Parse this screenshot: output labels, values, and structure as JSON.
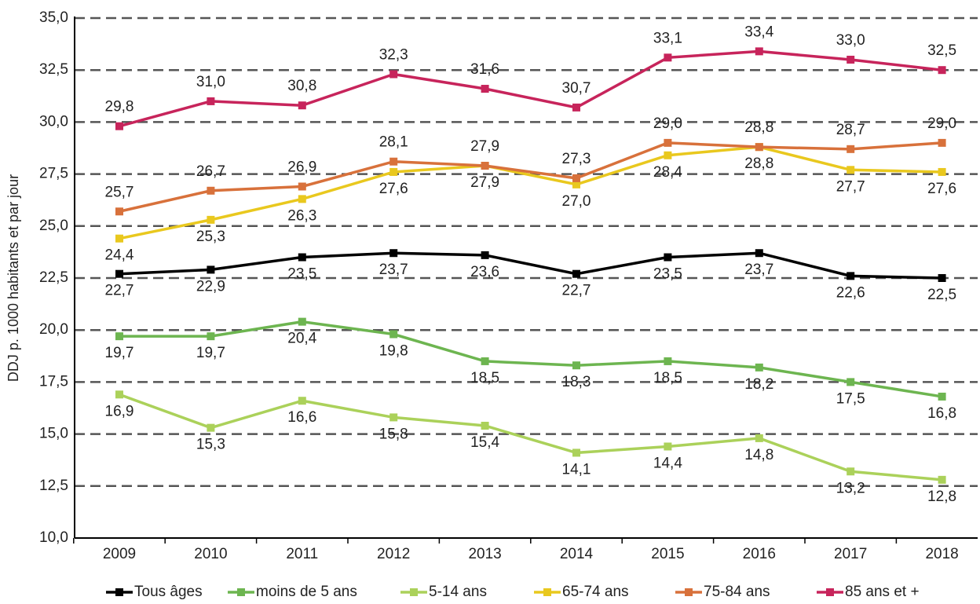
{
  "chart_data": {
    "type": "line",
    "y_label": "DDJ p. 1000 habitants et par jour",
    "categories": [
      "2009",
      "2010",
      "2011",
      "2012",
      "2013",
      "2014",
      "2015",
      "2016",
      "2017",
      "2018"
    ],
    "ylim": [
      10,
      35
    ],
    "yticks": [
      {
        "value": 10,
        "label": "10,0"
      },
      {
        "value": 12.5,
        "label": "12,5"
      },
      {
        "value": 15,
        "label": "15,0"
      },
      {
        "value": 17.5,
        "label": "17,5"
      },
      {
        "value": 20,
        "label": "20,0"
      },
      {
        "value": 22.5,
        "label": "22,5"
      },
      {
        "value": 25,
        "label": "25,0"
      },
      {
        "value": 27.5,
        "label": "27,5"
      },
      {
        "value": 30,
        "label": "30,0"
      },
      {
        "value": 32.5,
        "label": "32,5"
      },
      {
        "value": 35,
        "label": "35,0"
      }
    ],
    "grid": true,
    "legend": "bottom",
    "series": [
      {
        "name": "Tous âges",
        "color": "#000000",
        "values": [
          22.7,
          22.9,
          23.5,
          23.7,
          23.6,
          22.7,
          23.5,
          23.7,
          22.6,
          22.5
        ],
        "value_labels": [
          "22,7",
          "22,9",
          "23,5",
          "23,7",
          "23,6",
          "22,7",
          "23,5",
          "23,7",
          "22,6",
          "22,5"
        ]
      },
      {
        "name": "moins de 5 ans",
        "color": "#6db550",
        "values": [
          19.7,
          19.7,
          20.4,
          19.8,
          18.5,
          18.3,
          18.5,
          18.2,
          17.5,
          16.8
        ],
        "value_labels": [
          "19,7",
          "19,7",
          "20,4",
          "19,8",
          "18,5",
          "18,3",
          "18,5",
          "18,2",
          "17,5",
          "16,8"
        ]
      },
      {
        "name": "5-14 ans",
        "color": "#abd15a",
        "values": [
          16.9,
          15.3,
          16.6,
          15.8,
          15.4,
          14.1,
          14.4,
          14.8,
          13.2,
          12.8
        ],
        "value_labels": [
          "16,9",
          "15,3",
          "16,6",
          "15,8",
          "15,4",
          "14,1",
          "14,4",
          "14,8",
          "13,2",
          "12,8"
        ]
      },
      {
        "name": "65-74 ans",
        "color": "#e9c81e",
        "values": [
          24.4,
          25.3,
          26.3,
          27.6,
          27.9,
          27.0,
          28.4,
          28.8,
          27.7,
          27.6
        ],
        "value_labels": [
          "24,4",
          "25,3",
          "26,3",
          "27,6",
          "27,9",
          "27,0",
          "28,4",
          "28,8",
          "27,7",
          "27,6"
        ]
      },
      {
        "name": "75-84 ans",
        "color": "#d8713b",
        "values": [
          25.7,
          26.7,
          26.9,
          28.1,
          27.9,
          27.3,
          29.0,
          28.8,
          28.7,
          29.0
        ],
        "value_labels": [
          "25,7",
          "26,7",
          "26,9",
          "28,1",
          "27,9",
          "27,3",
          "29,0",
          "28,8",
          "28,7",
          "29,0"
        ]
      },
      {
        "name": "85 ans et +",
        "color": "#c7245b",
        "values": [
          29.8,
          31.0,
          30.8,
          32.3,
          31.6,
          30.7,
          33.1,
          33.4,
          33.0,
          32.5
        ],
        "value_labels": [
          "29,8",
          "31,0",
          "30,8",
          "32,3",
          "31,6",
          "30,7",
          "33,1",
          "33,4",
          "33,0",
          "32,5"
        ]
      }
    ]
  }
}
